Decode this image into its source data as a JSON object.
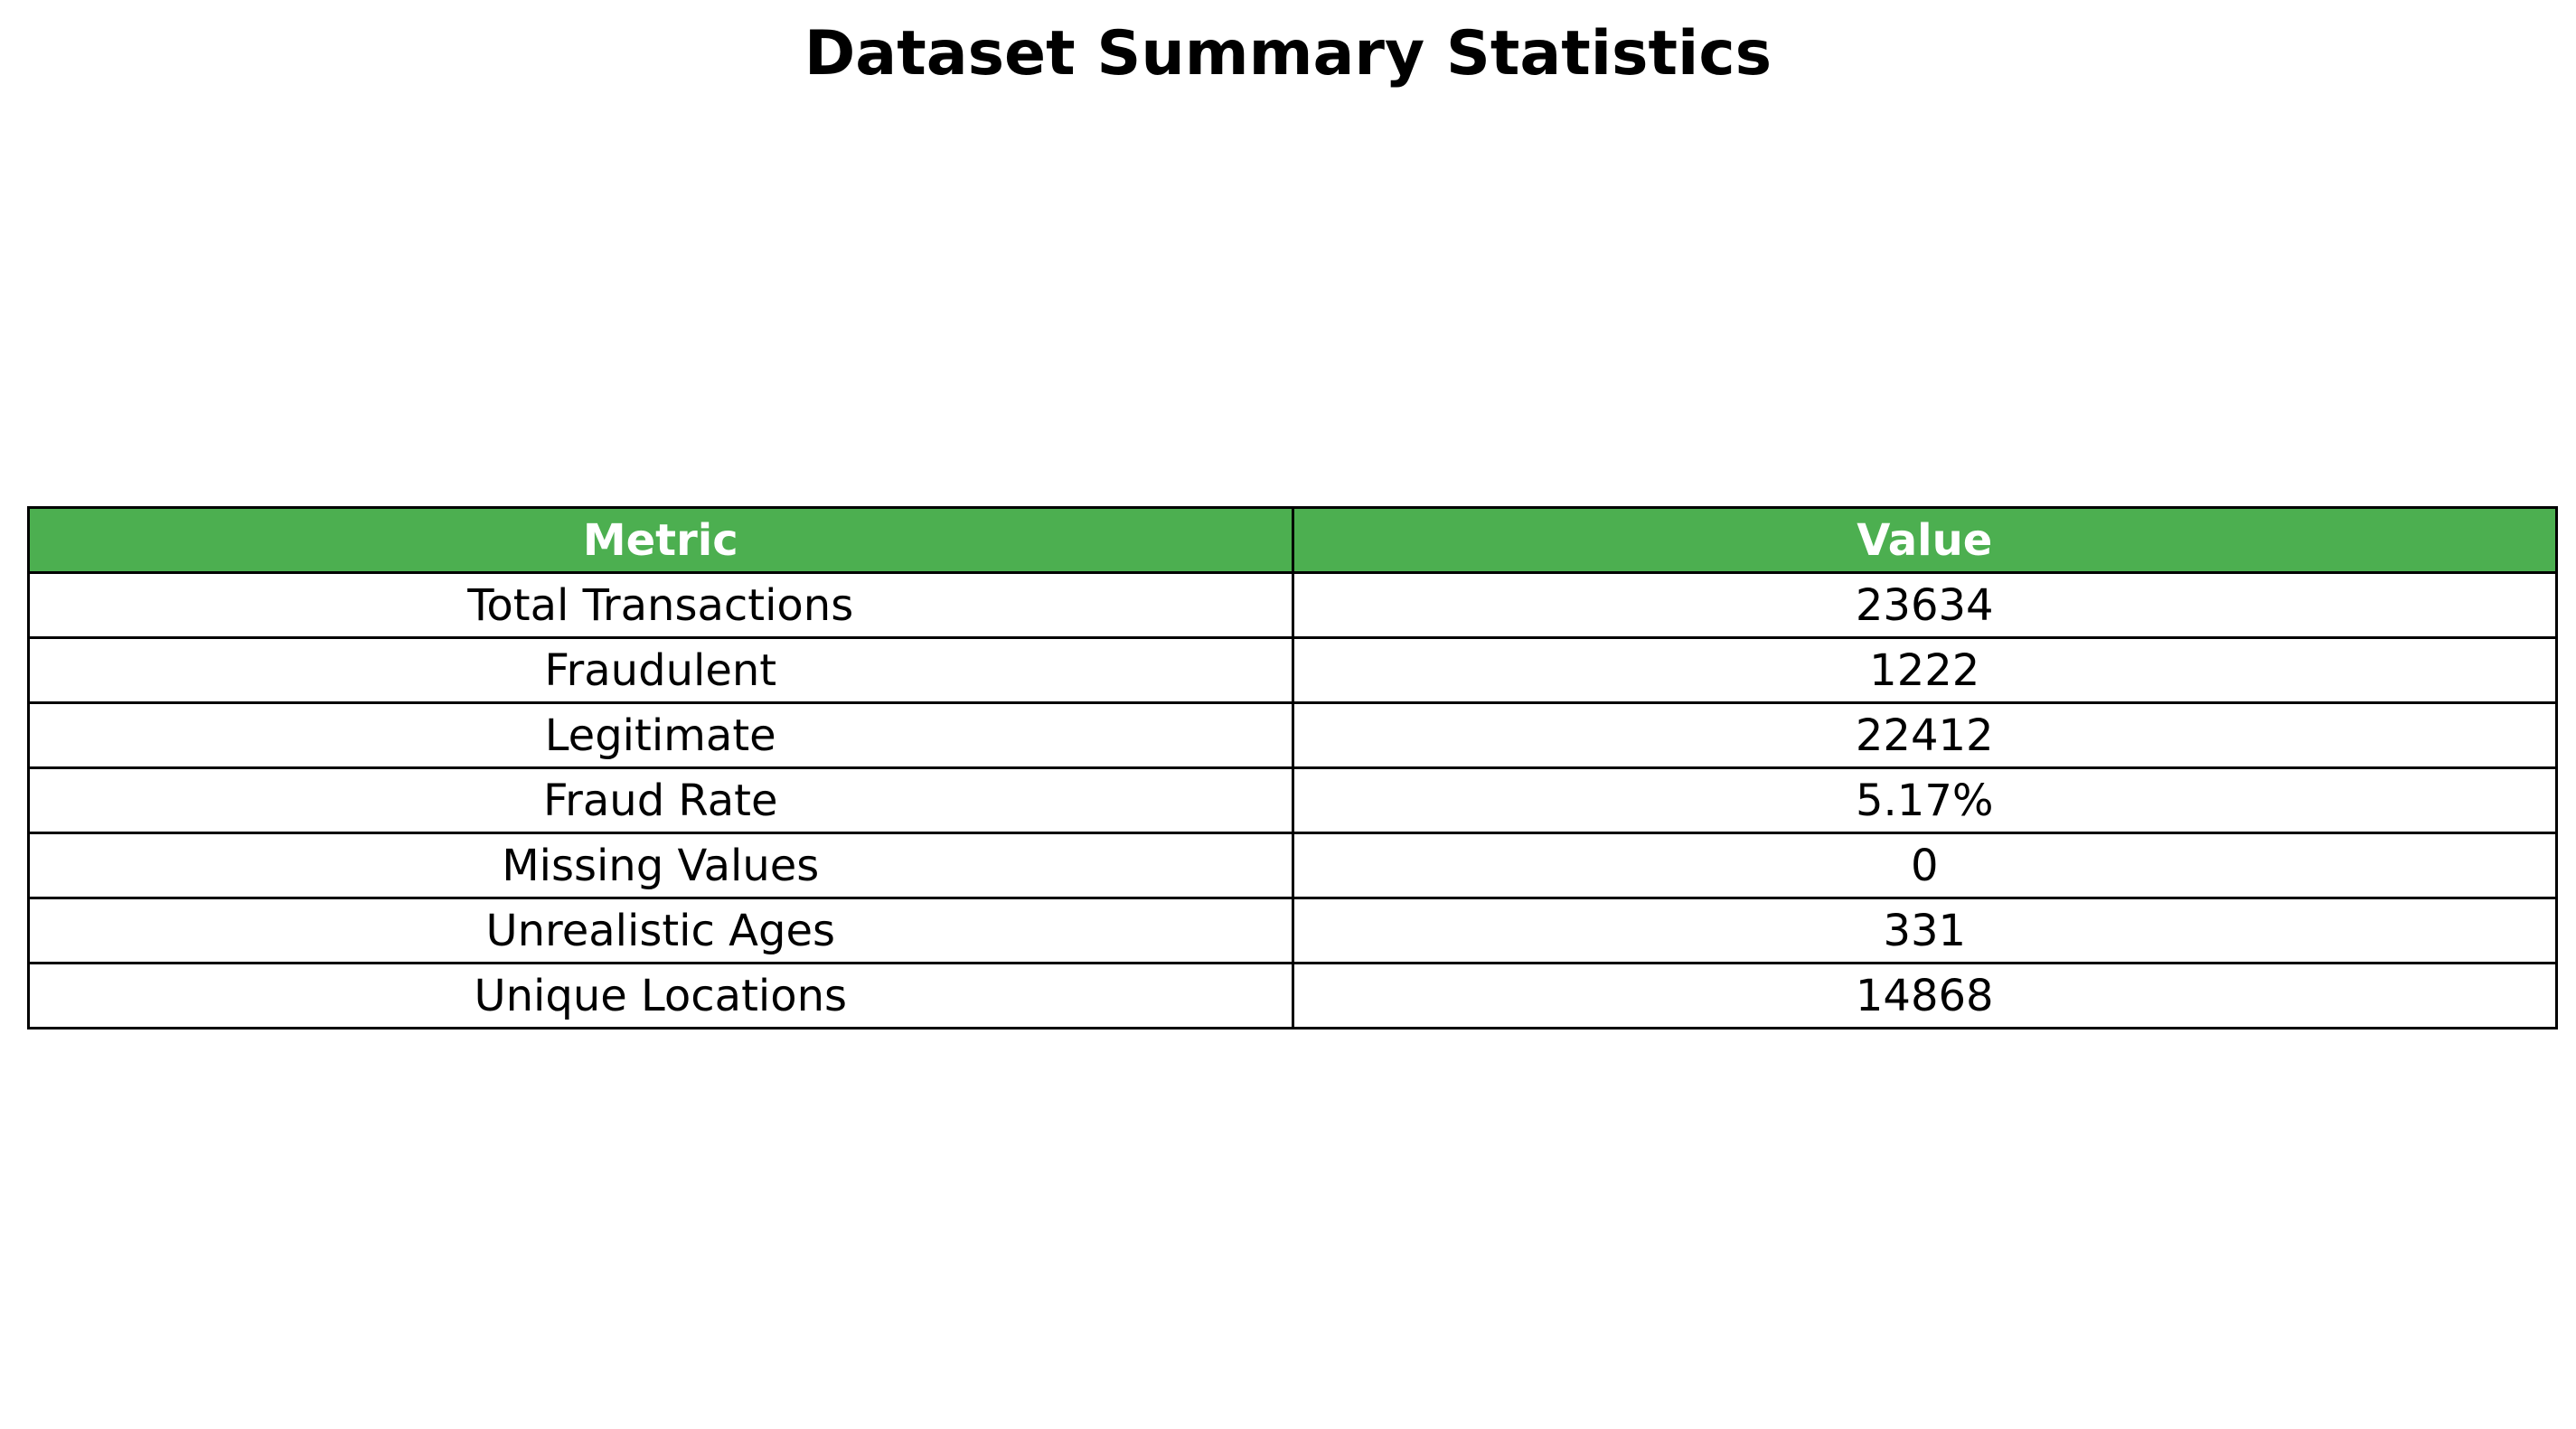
{
  "chart_data": {
    "type": "table",
    "title": "Dataset Summary Statistics",
    "columns": [
      "Metric",
      "Value"
    ],
    "rows": [
      [
        "Total Transactions",
        "23634"
      ],
      [
        "Fraudulent",
        "1222"
      ],
      [
        "Legitimate",
        "22412"
      ],
      [
        "Fraud Rate",
        "5.17%"
      ],
      [
        "Missing Values",
        "0"
      ],
      [
        "Unrealistic Ages",
        "331"
      ],
      [
        "Unique Locations",
        "14868"
      ]
    ],
    "header_color": "#4caf50",
    "header_text_color": "#ffffff",
    "border_color": "#000000"
  }
}
